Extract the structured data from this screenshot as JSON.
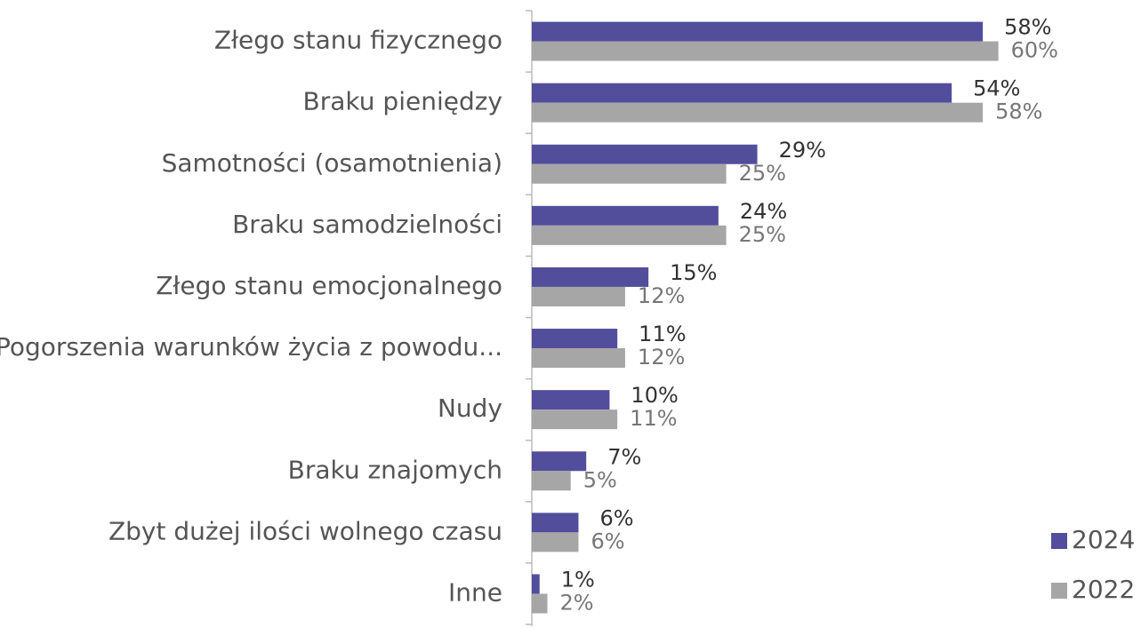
{
  "chart_data": {
    "type": "hbar",
    "categories": [
      "Złego stanu fizycznego",
      "Braku pieniędzy",
      "Samotności (osamotnienia)",
      "Braku samodzielności",
      "Złego stanu emocjonalnego",
      "Pogorszenia warunków życia z powodu...",
      "Nudy",
      "Braku znajomych",
      "Zbyt dużej ilości wolnego czasu",
      "Inne"
    ],
    "series": [
      {
        "name": "2024",
        "color": "#524e9c",
        "values": [
          58,
          54,
          29,
          24,
          15,
          11,
          10,
          7,
          6,
          1
        ],
        "value_labels": [
          "58%",
          "54%",
          "29%",
          "24%",
          "15%",
          "11%",
          "10%",
          "7%",
          "6%",
          "1%"
        ]
      },
      {
        "name": "2022",
        "color": "#a6a6a6",
        "values": [
          60,
          58,
          25,
          25,
          12,
          12,
          11,
          5,
          6,
          2
        ],
        "value_labels": [
          "60%",
          "58%",
          "25%",
          "25%",
          "12%",
          "12%",
          "11%",
          "5%",
          "6%",
          "2%"
        ]
      }
    ],
    "xlim": [
      0,
      78
    ],
    "legend": "bottom-right"
  }
}
